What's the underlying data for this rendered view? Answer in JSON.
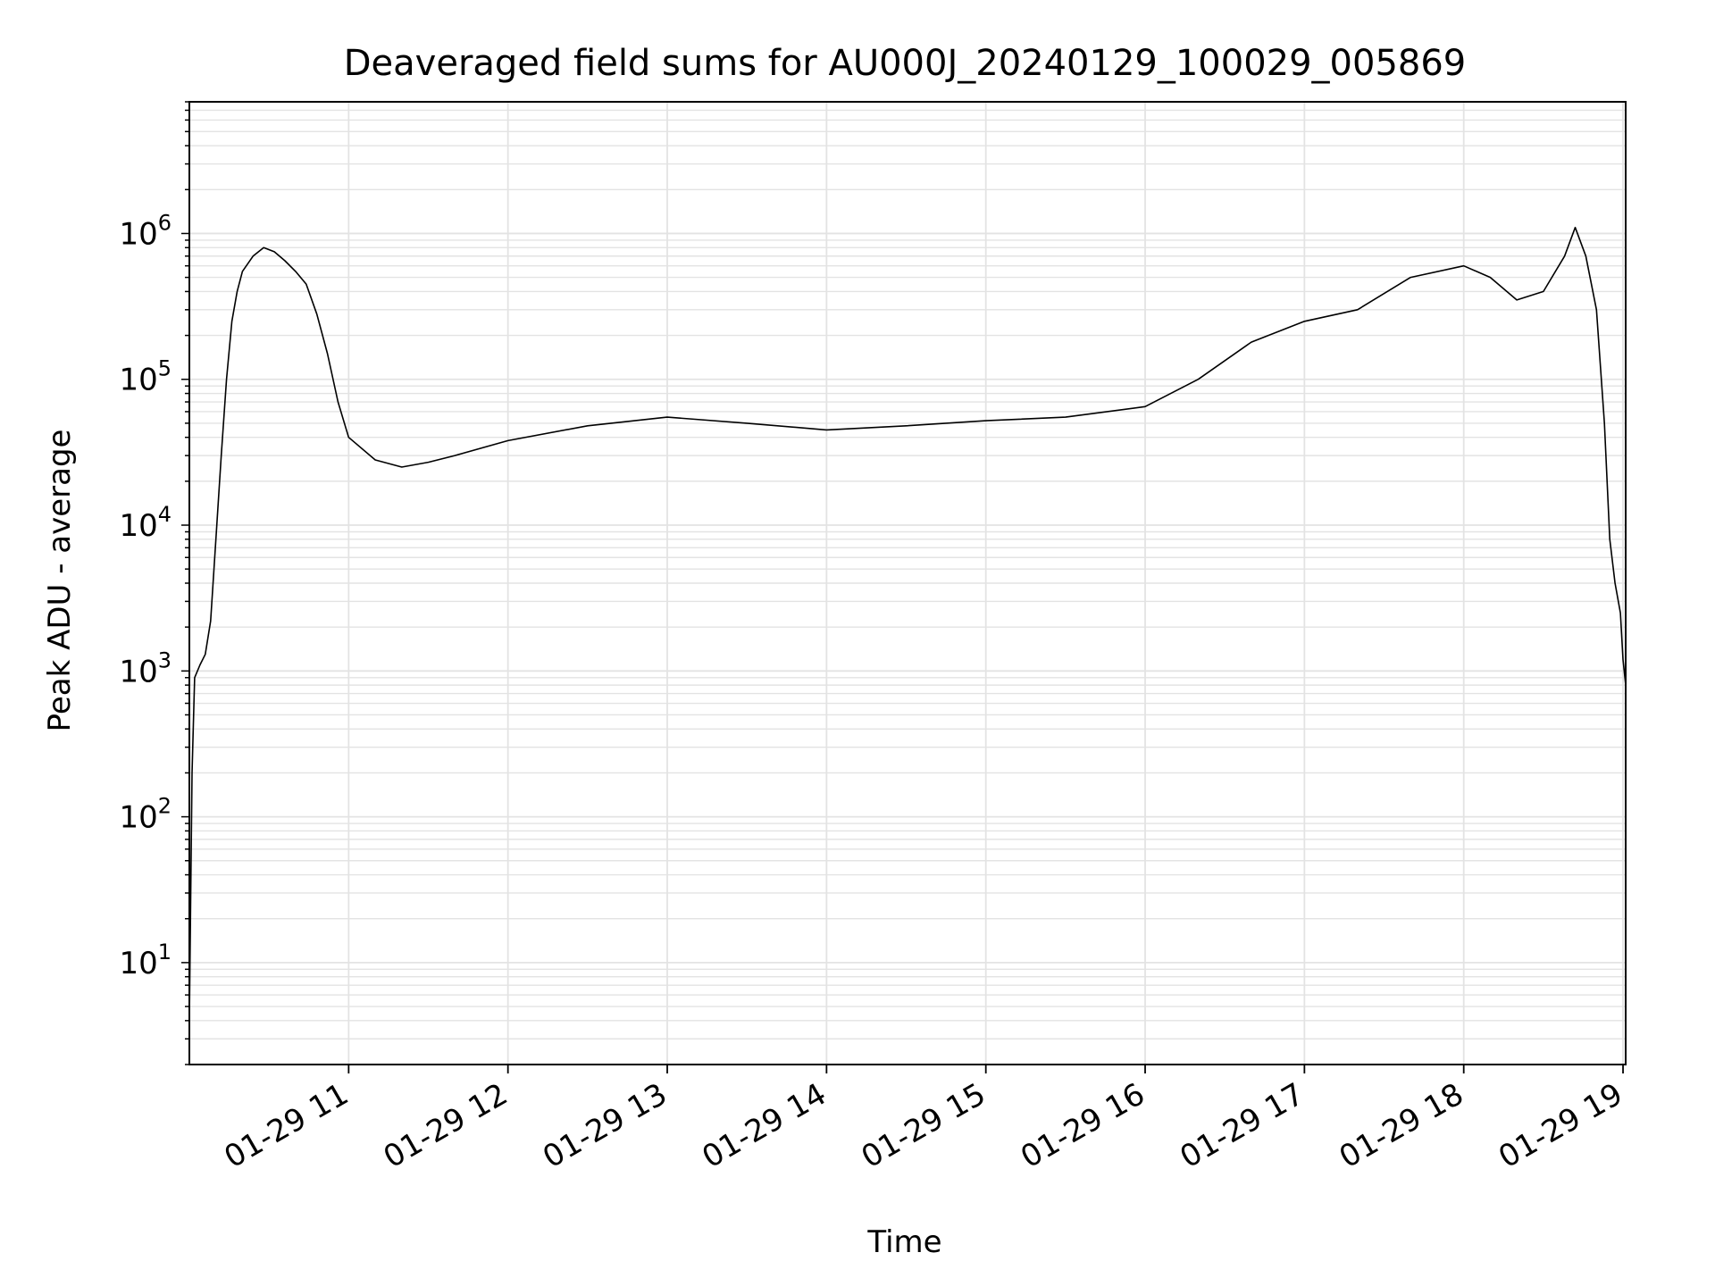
{
  "chart_data": {
    "type": "line",
    "title": "Deaveraged field sums for AU000J_20240129_100029_005869",
    "xlabel": "Time",
    "ylabel": "Peak ADU - average",
    "yscale": "log",
    "grid": true,
    "line_color": "#000000",
    "grid_color": "#e3e3e3",
    "x_tick_labels": [
      "01-29 11",
      "01-29 12",
      "01-29 13",
      "01-29 14",
      "01-29 15",
      "01-29 16",
      "01-29 17",
      "01-29 18",
      "01-29 19"
    ],
    "x_tick_values": [
      "2024-01-29T11:00",
      "2024-01-29T12:00",
      "2024-01-29T13:00",
      "2024-01-29T14:00",
      "2024-01-29T15:00",
      "2024-01-29T16:00",
      "2024-01-29T17:00",
      "2024-01-29T18:00",
      "2024-01-29T19:00"
    ],
    "xlim": [
      "2024-01-29T10:00",
      "2024-01-29T19:01"
    ],
    "y_tick_labels": [
      {
        "base": "10",
        "exp": "1",
        "value": 10
      },
      {
        "base": "10",
        "exp": "2",
        "value": 100
      },
      {
        "base": "10",
        "exp": "3",
        "value": 1000
      },
      {
        "base": "10",
        "exp": "4",
        "value": 10000
      },
      {
        "base": "10",
        "exp": "5",
        "value": 100000
      },
      {
        "base": "10",
        "exp": "6",
        "value": 1000000
      }
    ],
    "ylim": [
      2,
      8000000
    ],
    "series": [
      {
        "points": [
          [
            "2024-01-29T10:00",
            4
          ],
          [
            "2024-01-29T10:01",
            200
          ],
          [
            "2024-01-29T10:02",
            900
          ],
          [
            "2024-01-29T10:04",
            1100
          ],
          [
            "2024-01-29T10:06",
            1300
          ],
          [
            "2024-01-29T10:08",
            2200
          ],
          [
            "2024-01-29T10:10",
            8000
          ],
          [
            "2024-01-29T10:12",
            30000
          ],
          [
            "2024-01-29T10:14",
            100000
          ],
          [
            "2024-01-29T10:16",
            250000
          ],
          [
            "2024-01-29T10:18",
            400000
          ],
          [
            "2024-01-29T10:20",
            550000
          ],
          [
            "2024-01-29T10:24",
            700000
          ],
          [
            "2024-01-29T10:28",
            800000
          ],
          [
            "2024-01-29T10:32",
            750000
          ],
          [
            "2024-01-29T10:36",
            650000
          ],
          [
            "2024-01-29T10:40",
            550000
          ],
          [
            "2024-01-29T10:44",
            450000
          ],
          [
            "2024-01-29T10:48",
            280000
          ],
          [
            "2024-01-29T10:52",
            150000
          ],
          [
            "2024-01-29T10:56",
            70000
          ],
          [
            "2024-01-29T11:00",
            40000
          ],
          [
            "2024-01-29T11:10",
            28000
          ],
          [
            "2024-01-29T11:20",
            25000
          ],
          [
            "2024-01-29T11:30",
            27000
          ],
          [
            "2024-01-29T11:40",
            30000
          ],
          [
            "2024-01-29T12:00",
            38000
          ],
          [
            "2024-01-29T12:30",
            48000
          ],
          [
            "2024-01-29T13:00",
            55000
          ],
          [
            "2024-01-29T13:30",
            50000
          ],
          [
            "2024-01-29T14:00",
            45000
          ],
          [
            "2024-01-29T14:30",
            48000
          ],
          [
            "2024-01-29T15:00",
            52000
          ],
          [
            "2024-01-29T15:30",
            55000
          ],
          [
            "2024-01-29T16:00",
            65000
          ],
          [
            "2024-01-29T16:20",
            100000
          ],
          [
            "2024-01-29T16:40",
            180000
          ],
          [
            "2024-01-29T17:00",
            250000
          ],
          [
            "2024-01-29T17:20",
            300000
          ],
          [
            "2024-01-29T17:40",
            500000
          ],
          [
            "2024-01-29T18:00",
            600000
          ],
          [
            "2024-01-29T18:10",
            500000
          ],
          [
            "2024-01-29T18:20",
            350000
          ],
          [
            "2024-01-29T18:30",
            400000
          ],
          [
            "2024-01-29T18:38",
            700000
          ],
          [
            "2024-01-29T18:42",
            1100000
          ],
          [
            "2024-01-29T18:46",
            700000
          ],
          [
            "2024-01-29T18:50",
            300000
          ],
          [
            "2024-01-29T18:53",
            50000
          ],
          [
            "2024-01-29T18:55",
            8000
          ],
          [
            "2024-01-29T18:57",
            4000
          ],
          [
            "2024-01-29T18:59",
            2500
          ],
          [
            "2024-01-29T19:00",
            1200
          ],
          [
            "2024-01-29T19:01",
            800
          ]
        ]
      }
    ]
  }
}
